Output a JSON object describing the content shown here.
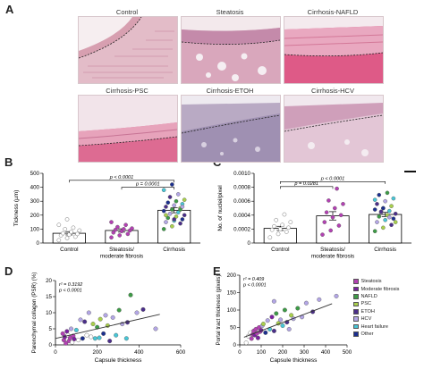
{
  "panels": {
    "a": "A",
    "b": "B",
    "c": "C",
    "d": "D",
    "e": "E"
  },
  "histology": {
    "labels": [
      "Control",
      "Steatosis",
      "Cirrhosis-NAFLD",
      "Cirrhosis-PSC",
      "Cirrhosis-ETOH",
      "Cirrhosis-HCV"
    ]
  },
  "legend": [
    {
      "name": "Steatosis",
      "color": "#b341b3"
    },
    {
      "name": "Moderate fibrosis",
      "color": "#7a1fa0"
    },
    {
      "name": "NAFLD",
      "color": "#3d9b46"
    },
    {
      "name": "PSC",
      "color": "#a9d04c"
    },
    {
      "name": "ETOH",
      "color": "#4b2e8a"
    },
    {
      "name": "HCV",
      "color": "#b3a6e6"
    },
    {
      "name": "Heart failure",
      "color": "#48c6d6"
    },
    {
      "name": "Other",
      "color": "#1b2f8f"
    }
  ],
  "chart_data": [
    {
      "id": "B",
      "type": "bar",
      "ylabel": "Tickness (µm)",
      "yticks": [
        "0",
        "100",
        "200",
        "300",
        "400",
        "500"
      ],
      "ylim": [
        0,
        500
      ],
      "categories": [
        "Control",
        "Steatosis/ moderate fibrosis",
        "Cirrhosis"
      ],
      "category_lines": [
        [
          "Control"
        ],
        [
          "Steatosis/",
          "moderate fibrosis"
        ],
        [
          "Cirrhosis"
        ]
      ],
      "values": [
        70,
        90,
        235
      ],
      "errors": [
        12,
        12,
        18
      ],
      "annotations": [
        {
          "text": "p < 0.0001",
          "from": 0,
          "to": 2,
          "y": 450
        },
        {
          "text": "p = 0.0001",
          "from": 1,
          "to": 2,
          "y": 400
        }
      ],
      "points": [
        {
          "cat": 0,
          "color": "#ffffff",
          "values": [
            20,
            35,
            45,
            55,
            60,
            65,
            70,
            80,
            90,
            100,
            110,
            130,
            170
          ]
        },
        {
          "cat": 1,
          "color": "#b341b3",
          "values": [
            40,
            55,
            65,
            75,
            85,
            90,
            95,
            100,
            105,
            115,
            130,
            150
          ]
        },
        {
          "cat": 2,
          "color": "mixed",
          "values": [
            100,
            120,
            140,
            150,
            160,
            170,
            180,
            190,
            200,
            210,
            220,
            230,
            240,
            250,
            260,
            270,
            280,
            290,
            300,
            310,
            330,
            350,
            380,
            420,
            240,
            200,
            170,
            260
          ]
        }
      ]
    },
    {
      "id": "C",
      "type": "bar",
      "ylabel": "No. of nuclei/pixel",
      "yticks": [
        "0",
        "0.0002",
        "0.0004",
        "0.0006",
        "0.0008",
        "0.0010"
      ],
      "ylim": [
        0,
        0.001
      ],
      "categories": [
        "Control",
        "Steatosis/ moderate fibrosis",
        "Cirrhosis"
      ],
      "category_lines": [
        [
          "Control"
        ],
        [
          "Steatosis/",
          "moderate fibrosis"
        ],
        [
          "Cirrhosis"
        ]
      ],
      "values": [
        0.00021,
        0.00039,
        0.00041
      ],
      "errors": [
        3e-05,
        6e-05,
        3e-05
      ],
      "annotations": [
        {
          "text": "p < 0.0001",
          "from": 0,
          "to": 2,
          "y": 0.00088
        },
        {
          "text": "p = 0.0281",
          "from": 0,
          "to": 1,
          "y": 0.00081
        }
      ],
      "points": [
        {
          "cat": 0,
          "color": "#ffffff",
          "values": [
            8e-05,
            0.00013,
            0.00016,
            0.00019,
            0.0002,
            0.00022,
            0.00024,
            0.00026,
            0.0003,
            0.00033,
            0.00041
          ]
        },
        {
          "cat": 1,
          "color": "#b341b3",
          "values": [
            0.00012,
            0.00018,
            0.00025,
            0.0003,
            0.00037,
            0.0004,
            0.00044,
            0.0005,
            0.00056,
            0.00061,
            0.00078
          ]
        },
        {
          "cat": 2,
          "color": "mixed",
          "values": [
            0.00017,
            0.00022,
            0.00026,
            0.0003,
            0.00033,
            0.00035,
            0.00038,
            0.0004,
            0.00042,
            0.00044,
            0.00046,
            0.00048,
            0.0005,
            0.00053,
            0.00056,
            0.0006,
            0.00064,
            0.00069,
            0.00072,
            0.0003,
            0.00045,
            0.00037,
            0.00062,
            0.0005
          ]
        }
      ]
    },
    {
      "id": "D",
      "type": "scatter",
      "xlabel": "Capsule thickness",
      "ylabel": "Parenchymal collagen (PSR) (%)",
      "xticks": [
        "0",
        "200",
        "400",
        "600"
      ],
      "yticks": [
        "0",
        "5",
        "10",
        "15",
        "20"
      ],
      "xlim": [
        0,
        600
      ],
      "ylim": [
        0,
        20
      ],
      "stats": [
        "r² = 0.3192",
        "p < 0.0001"
      ],
      "fit": [
        [
          0,
          2.0
        ],
        [
          500,
          9.5
        ]
      ],
      "points": [
        {
          "x": 35,
          "y": 3.5,
          "c": "#b341b3"
        },
        {
          "x": 40,
          "y": 1.5,
          "c": "#b341b3"
        },
        {
          "x": 45,
          "y": 2.5,
          "c": "#7a1fa0"
        },
        {
          "x": 50,
          "y": 0.5,
          "c": "#b341b3"
        },
        {
          "x": 55,
          "y": 4.2,
          "c": "#7a1fa0"
        },
        {
          "x": 60,
          "y": 3.0,
          "c": "#ffffff"
        },
        {
          "x": 65,
          "y": 1.2,
          "c": "#b341b3"
        },
        {
          "x": 70,
          "y": 2.2,
          "c": "#b341b3"
        },
        {
          "x": 75,
          "y": 5.0,
          "c": "#b3a6e6"
        },
        {
          "x": 80,
          "y": 0.8,
          "c": "#ffffff"
        },
        {
          "x": 85,
          "y": 2.8,
          "c": "#b341b3"
        },
        {
          "x": 90,
          "y": 1.8,
          "c": "#7a1fa0"
        },
        {
          "x": 100,
          "y": 4.6,
          "c": "#48c6d6"
        },
        {
          "x": 110,
          "y": 1.5,
          "c": "#ffffff"
        },
        {
          "x": 120,
          "y": 7.8,
          "c": "#b3a6e6"
        },
        {
          "x": 130,
          "y": 2.0,
          "c": "#1b2f8f"
        },
        {
          "x": 140,
          "y": 7.2,
          "c": "#4b2e8a"
        },
        {
          "x": 150,
          "y": 3.0,
          "c": "#ffffff"
        },
        {
          "x": 160,
          "y": 10.0,
          "c": "#b3a6e6"
        },
        {
          "x": 170,
          "y": 2.5,
          "c": "#ffffff"
        },
        {
          "x": 180,
          "y": 6.5,
          "c": "#a9d04c"
        },
        {
          "x": 190,
          "y": 2.0,
          "c": "#48c6d6"
        },
        {
          "x": 200,
          "y": 5.5,
          "c": "#3d9b46"
        },
        {
          "x": 210,
          "y": 2.2,
          "c": "#48c6d6"
        },
        {
          "x": 215,
          "y": 8.0,
          "c": "#a9d04c"
        },
        {
          "x": 230,
          "y": 3.5,
          "c": "#1b2f8f"
        },
        {
          "x": 240,
          "y": 9.2,
          "c": "#b3a6e6"
        },
        {
          "x": 250,
          "y": 6.0,
          "c": "#a9d04c"
        },
        {
          "x": 260,
          "y": 1.2,
          "c": "#4b2e8a"
        },
        {
          "x": 275,
          "y": 8.5,
          "c": "#b3a6e6"
        },
        {
          "x": 290,
          "y": 3.0,
          "c": "#48c6d6"
        },
        {
          "x": 305,
          "y": 10.8,
          "c": "#3d9b46"
        },
        {
          "x": 320,
          "y": 6.5,
          "c": "#b3a6e6"
        },
        {
          "x": 340,
          "y": 2.0,
          "c": "#48c6d6"
        },
        {
          "x": 345,
          "y": 7.0,
          "c": "#4b2e8a"
        },
        {
          "x": 360,
          "y": 15.5,
          "c": "#3d9b46"
        },
        {
          "x": 390,
          "y": 10.0,
          "c": "#b3a6e6"
        },
        {
          "x": 420,
          "y": 11.0,
          "c": "#4b2e8a"
        },
        {
          "x": 480,
          "y": 5.0,
          "c": "#b3a6e6"
        }
      ]
    },
    {
      "id": "E",
      "type": "scatter",
      "xlabel": "Capsule thickness",
      "ylabel": "Portal tract thickness (pixels)",
      "xticks": [
        "0",
        "100",
        "200",
        "300",
        "400",
        "500"
      ],
      "yticks": [
        "0",
        "50",
        "100",
        "150",
        "200"
      ],
      "xlim": [
        0,
        500
      ],
      "ylim": [
        0,
        200
      ],
      "stats": [
        "r² = 0.409",
        "p < 0.0001"
      ],
      "fit": [
        [
          20,
          22
        ],
        [
          430,
          118
        ]
      ],
      "points": [
        {
          "x": 30,
          "y": 6,
          "c": "#ffffff"
        },
        {
          "x": 40,
          "y": 25,
          "c": "#ffffff"
        },
        {
          "x": 50,
          "y": 35,
          "c": "#ffffff"
        },
        {
          "x": 55,
          "y": 18,
          "c": "#b341b3"
        },
        {
          "x": 60,
          "y": 30,
          "c": "#b341b3"
        },
        {
          "x": 65,
          "y": 40,
          "c": "#b341b3"
        },
        {
          "x": 70,
          "y": 28,
          "c": "#7a1fa0"
        },
        {
          "x": 75,
          "y": 45,
          "c": "#b341b3"
        },
        {
          "x": 80,
          "y": 33,
          "c": "#b341b3"
        },
        {
          "x": 85,
          "y": 20,
          "c": "#7a1fa0"
        },
        {
          "x": 90,
          "y": 50,
          "c": "#b341b3"
        },
        {
          "x": 95,
          "y": 38,
          "c": "#b341b3"
        },
        {
          "x": 100,
          "y": 42,
          "c": "#7a1fa0"
        },
        {
          "x": 105,
          "y": 55,
          "c": "#b3a6e6"
        },
        {
          "x": 110,
          "y": 60,
          "c": "#a9d04c"
        },
        {
          "x": 120,
          "y": 35,
          "c": "#1b2f8f"
        },
        {
          "x": 130,
          "y": 70,
          "c": "#b3a6e6"
        },
        {
          "x": 140,
          "y": 45,
          "c": "#48c6d6"
        },
        {
          "x": 150,
          "y": 80,
          "c": "#7a1fa0"
        },
        {
          "x": 160,
          "y": 40,
          "c": "#4b2e8a"
        },
        {
          "x": 170,
          "y": 90,
          "c": "#3d9b46"
        },
        {
          "x": 180,
          "y": 62,
          "c": "#a9d04c"
        },
        {
          "x": 190,
          "y": 72,
          "c": "#b3a6e6"
        },
        {
          "x": 200,
          "y": 55,
          "c": "#48c6d6"
        },
        {
          "x": 210,
          "y": 100,
          "c": "#3d9b46"
        },
        {
          "x": 220,
          "y": 65,
          "c": "#4b2e8a"
        },
        {
          "x": 230,
          "y": 45,
          "c": "#b3a6e6"
        },
        {
          "x": 240,
          "y": 85,
          "c": "#a9d04c"
        },
        {
          "x": 250,
          "y": 75,
          "c": "#b3a6e6"
        },
        {
          "x": 270,
          "y": 105,
          "c": "#3d9b46"
        },
        {
          "x": 290,
          "y": 80,
          "c": "#b3a6e6"
        },
        {
          "x": 310,
          "y": 120,
          "c": "#b3a6e6"
        },
        {
          "x": 340,
          "y": 95,
          "c": "#4b2e8a"
        },
        {
          "x": 370,
          "y": 130,
          "c": "#b3a6e6"
        },
        {
          "x": 450,
          "y": 140,
          "c": "#b3a6e6"
        },
        {
          "x": 160,
          "y": 125,
          "c": "#b3a6e6"
        }
      ]
    }
  ]
}
